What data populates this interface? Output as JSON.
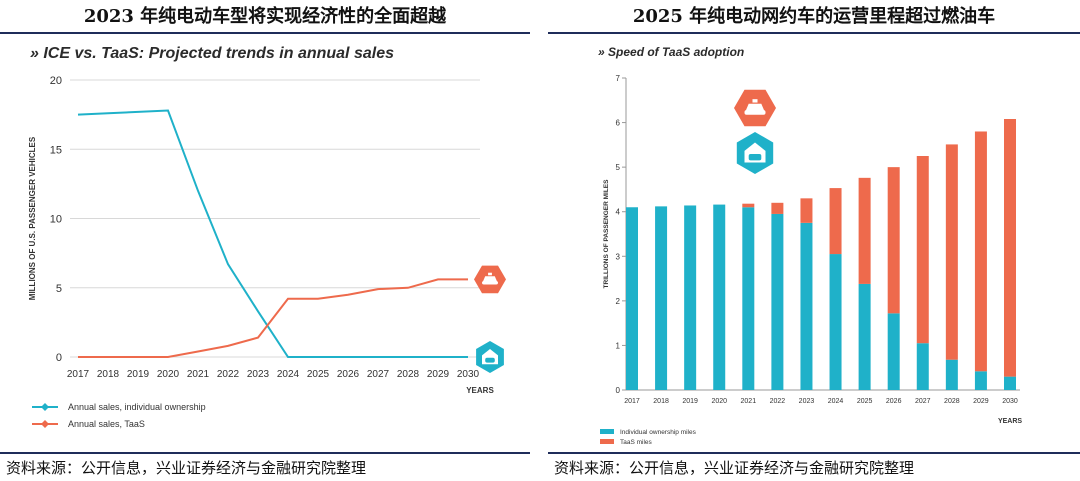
{
  "left_panel": {
    "header": "2023 年纯电动车型将实现经济性的全面超越",
    "footer": "资料来源：公开信息，兴业证券经济与金融研究院整理"
  },
  "right_panel": {
    "header": "2025 年纯电动网约车的运营里程超过燃油车",
    "footer": "资料来源：公开信息，兴业证券经济与金融研究院整理"
  },
  "colors": {
    "blue": "#1fb1c9",
    "orange": "#ee6a4c",
    "axis": "#555555",
    "grid": "#d8d8d8"
  },
  "icons": {
    "taas": "car-hailing-icon",
    "individual": "car-garage-icon"
  },
  "chart_data": [
    {
      "type": "line",
      "title": "» ICE vs. TaaS: Projected trends in annual sales",
      "ylabel": "MILLIONS OF U.S. PASSENGER VEHICLES",
      "xlabel": "YEARS",
      "categories": [
        "2017",
        "2018",
        "2019",
        "2020",
        "2021",
        "2022",
        "2023",
        "2024",
        "2025",
        "2026",
        "2027",
        "2028",
        "2029",
        "2030"
      ],
      "ylim": [
        0,
        20
      ],
      "yticks": [
        "0",
        "5",
        "10",
        "15",
        "20"
      ],
      "series": [
        {
          "name": "Annual sales, individual ownership",
          "color": "#1fb1c9",
          "values": [
            17.5,
            17.6,
            17.7,
            17.8,
            12.0,
            6.7,
            3.3,
            0,
            0,
            0,
            0,
            0,
            0,
            0
          ]
        },
        {
          "name": "Annual sales, TaaS",
          "color": "#ee6a4c",
          "values": [
            0,
            0,
            0,
            0,
            0.4,
            0.8,
            1.4,
            4.2,
            4.2,
            4.5,
            4.9,
            5.0,
            5.6,
            5.6
          ]
        }
      ],
      "legend": "bottom-left"
    },
    {
      "type": "bar",
      "stacked": true,
      "title": "» Speed of TaaS adoption",
      "ylabel": "TRILLIONS OF PASSENGER MILES",
      "xlabel": "YEARS",
      "categories": [
        "2017",
        "2018",
        "2019",
        "2020",
        "2021",
        "2022",
        "2023",
        "2024",
        "2025",
        "2026",
        "2027",
        "2028",
        "2029",
        "2030"
      ],
      "ylim": [
        0,
        7
      ],
      "yticks": [
        "0",
        "1",
        "2",
        "3",
        "4",
        "5",
        "6",
        "7"
      ],
      "series": [
        {
          "name": "Individual ownership miles",
          "color": "#1fb1c9",
          "values": [
            4.1,
            4.12,
            4.14,
            4.16,
            4.1,
            3.95,
            3.75,
            3.05,
            2.38,
            1.72,
            1.05,
            0.68,
            0.42,
            0.3
          ]
        },
        {
          "name": "TaaS miles",
          "color": "#ee6a4c",
          "values": [
            0,
            0,
            0,
            0,
            0.08,
            0.25,
            0.55,
            1.48,
            2.38,
            3.28,
            4.2,
            4.83,
            5.38,
            5.78
          ]
        }
      ],
      "legend": "bottom-left"
    }
  ]
}
